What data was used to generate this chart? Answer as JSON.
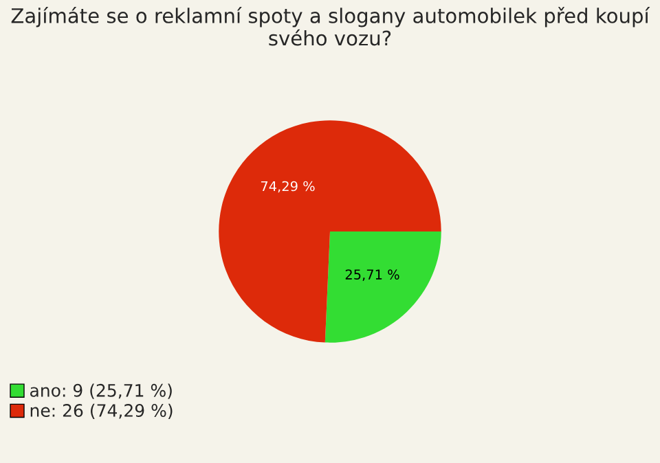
{
  "chart_data": {
    "type": "pie",
    "title": "Zajímáte se o reklamní spoty a slogany automobilek před koupí svého vozu?",
    "categories": [
      "ano: 9 (25,71 %)",
      "ne: 26 (74,29 %)"
    ],
    "values": [
      25.71,
      74.29
    ],
    "colors": [
      "#33dd33",
      "#dd2a0a"
    ],
    "value_labels": [
      "25,71 %",
      "74,29 %"
    ],
    "legend": "bottom left"
  }
}
